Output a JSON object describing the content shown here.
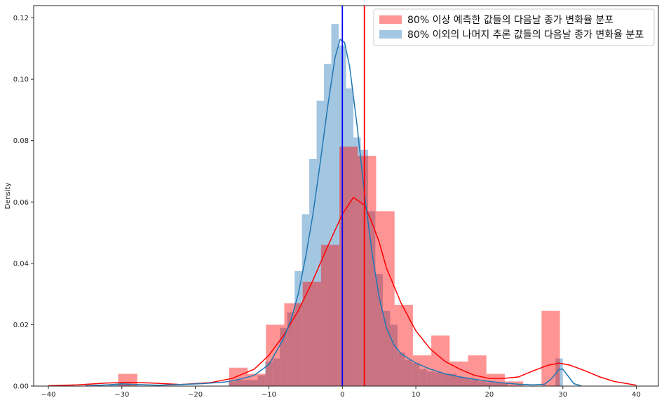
{
  "chart_data": {
    "type": "histogram",
    "ylabel": "Density",
    "xlim": [
      -42,
      43
    ],
    "ylim": [
      0,
      0.124
    ],
    "x_ticks": [
      -40,
      -30,
      -20,
      -10,
      0,
      10,
      20,
      30,
      40
    ],
    "x_tick_labels": [
      "−40",
      "−30",
      "−20",
      "−10",
      "0",
      "10",
      "20",
      "30",
      "40"
    ],
    "y_ticks": [
      0.0,
      0.02,
      0.04,
      0.06,
      0.08,
      0.1,
      0.12
    ],
    "y_tick_labels": [
      "0.00",
      "0.02",
      "0.04",
      "0.06",
      "0.08",
      "0.10",
      "0.12"
    ],
    "legend": {
      "location": "upper right"
    },
    "series": [
      {
        "name": "80% 이상 예측한 값들의 다음날 종가 변화율 분포",
        "color": "#ff0000",
        "bar_alpha": 0.42,
        "bins": [
          {
            "x0": -30.5,
            "x1": -27.9,
            "y": 0.004
          },
          {
            "x0": -15.4,
            "x1": -12.9,
            "y": 0.006
          },
          {
            "x0": -12.9,
            "x1": -10.4,
            "y": 0.004
          },
          {
            "x0": -10.4,
            "x1": -7.9,
            "y": 0.02
          },
          {
            "x0": -7.9,
            "x1": -5.4,
            "y": 0.027
          },
          {
            "x0": -5.4,
            "x1": -2.9,
            "y": 0.034
          },
          {
            "x0": -2.9,
            "x1": -0.4,
            "y": 0.046
          },
          {
            "x0": -0.4,
            "x1": 2.1,
            "y": 0.078
          },
          {
            "x0": 2.1,
            "x1": 4.6,
            "y": 0.075
          },
          {
            "x0": 4.6,
            "x1": 7.1,
            "y": 0.057
          },
          {
            "x0": 7.1,
            "x1": 9.6,
            "y": 0.0265
          },
          {
            "x0": 9.6,
            "x1": 12.1,
            "y": 0.01
          },
          {
            "x0": 12.1,
            "x1": 14.6,
            "y": 0.0165
          },
          {
            "x0": 14.6,
            "x1": 17.1,
            "y": 0.008
          },
          {
            "x0": 17.1,
            "x1": 19.6,
            "y": 0.01
          },
          {
            "x0": 19.6,
            "x1": 22.1,
            "y": 0.004
          },
          {
            "x0": 22.1,
            "x1": 24.6,
            "y": 0.0015
          },
          {
            "x0": 27.1,
            "x1": 29.6,
            "y": 0.0245
          }
        ],
        "kde": [
          [
            -40,
            0.0001
          ],
          [
            -36,
            0.0004
          ],
          [
            -32,
            0.001
          ],
          [
            -29,
            0.0012
          ],
          [
            -26,
            0.001
          ],
          [
            -22,
            0.0005
          ],
          [
            -18,
            0.0011
          ],
          [
            -15,
            0.0025
          ],
          [
            -12,
            0.0055
          ],
          [
            -10,
            0.01
          ],
          [
            -8,
            0.0165
          ],
          [
            -6,
            0.0245
          ],
          [
            -4,
            0.0345
          ],
          [
            -2,
            0.0455
          ],
          [
            0,
            0.056
          ],
          [
            1.5,
            0.0615
          ],
          [
            3,
            0.059
          ],
          [
            4,
            0.0535
          ],
          [
            5,
            0.047
          ],
          [
            6,
            0.0385
          ],
          [
            8,
            0.027
          ],
          [
            10,
            0.018
          ],
          [
            12,
            0.012
          ],
          [
            14,
            0.008
          ],
          [
            16,
            0.0055
          ],
          [
            18,
            0.0035
          ],
          [
            20,
            0.0025
          ],
          [
            22,
            0.0025
          ],
          [
            24,
            0.003
          ],
          [
            26,
            0.005
          ],
          [
            28,
            0.0068
          ],
          [
            29.5,
            0.0075
          ],
          [
            31,
            0.0068
          ],
          [
            33,
            0.005
          ],
          [
            35,
            0.003
          ],
          [
            37,
            0.0015
          ],
          [
            40,
            0.0003
          ]
        ],
        "vline_x": 3.0
      },
      {
        "name": "80% 이외의 나머지 추론 값들의 다음날 종가 변화율 분포",
        "color": "#1f77b4",
        "bar_color": "#7fb0d6",
        "bar_alpha": 0.72,
        "bins": [
          {
            "x0": -31.8,
            "x1": -30.8,
            "y": 0.0005
          },
          {
            "x0": -30.8,
            "x1": -29.8,
            "y": 0.0008
          },
          {
            "x0": -29.8,
            "x1": -28.8,
            "y": 0.0005
          },
          {
            "x0": -15.5,
            "x1": -14.5,
            "y": 0.0015
          },
          {
            "x0": -14.5,
            "x1": -13.5,
            "y": 0.002
          },
          {
            "x0": -13.5,
            "x1": -12.5,
            "y": 0.002
          },
          {
            "x0": -12.5,
            "x1": -11.5,
            "y": 0.002
          },
          {
            "x0": -11.5,
            "x1": -10.5,
            "y": 0.0035
          },
          {
            "x0": -10.5,
            "x1": -9.5,
            "y": 0.008
          },
          {
            "x0": -9.5,
            "x1": -8.5,
            "y": 0.009
          },
          {
            "x0": -8.5,
            "x1": -7.5,
            "y": 0.019
          },
          {
            "x0": -7.5,
            "x1": -6.5,
            "y": 0.024
          },
          {
            "x0": -6.5,
            "x1": -5.5,
            "y": 0.0375
          },
          {
            "x0": -5.5,
            "x1": -4.5,
            "y": 0.056
          },
          {
            "x0": -4.5,
            "x1": -3.5,
            "y": 0.074
          },
          {
            "x0": -3.5,
            "x1": -2.5,
            "y": 0.093
          },
          {
            "x0": -2.5,
            "x1": -1.5,
            "y": 0.105
          },
          {
            "x0": -1.5,
            "x1": -0.5,
            "y": 0.118
          },
          {
            "x0": -0.5,
            "x1": 0.5,
            "y": 0.111
          },
          {
            "x0": 0.5,
            "x1": 1.5,
            "y": 0.097
          },
          {
            "x0": 1.5,
            "x1": 2.5,
            "y": 0.081
          },
          {
            "x0": 2.5,
            "x1": 3.5,
            "y": 0.077
          },
          {
            "x0": 3.5,
            "x1": 4.5,
            "y": 0.057
          },
          {
            "x0": 4.5,
            "x1": 5.5,
            "y": 0.0365
          },
          {
            "x0": 5.5,
            "x1": 6.5,
            "y": 0.0245
          },
          {
            "x0": 6.5,
            "x1": 7.5,
            "y": 0.02
          },
          {
            "x0": 7.5,
            "x1": 8.5,
            "y": 0.011
          },
          {
            "x0": 8.5,
            "x1": 9.5,
            "y": 0.0085
          },
          {
            "x0": 9.5,
            "x1": 10.5,
            "y": 0.0075
          },
          {
            "x0": 10.5,
            "x1": 11.5,
            "y": 0.0055
          },
          {
            "x0": 11.5,
            "x1": 12.5,
            "y": 0.0048
          },
          {
            "x0": 12.5,
            "x1": 13.5,
            "y": 0.0045
          },
          {
            "x0": 13.5,
            "x1": 14.5,
            "y": 0.004
          },
          {
            "x0": 14.5,
            "x1": 15.5,
            "y": 0.004
          },
          {
            "x0": 15.5,
            "x1": 16.5,
            "y": 0.003
          },
          {
            "x0": 16.5,
            "x1": 17.5,
            "y": 0.0025
          },
          {
            "x0": 17.5,
            "x1": 18.5,
            "y": 0.002
          },
          {
            "x0": 18.5,
            "x1": 19.5,
            "y": 0.0015
          },
          {
            "x0": 19.5,
            "x1": 20.5,
            "y": 0.0012
          },
          {
            "x0": 20.5,
            "x1": 21.5,
            "y": 0.001
          },
          {
            "x0": 21.5,
            "x1": 22.5,
            "y": 0.001
          },
          {
            "x0": 29.0,
            "x1": 30.0,
            "y": 0.009
          }
        ],
        "kde": [
          [
            -35,
            0.0001
          ],
          [
            -32,
            0.0004
          ],
          [
            -30,
            0.0007
          ],
          [
            -28,
            0.0005
          ],
          [
            -25,
            0.0003
          ],
          [
            -22,
            0.0005
          ],
          [
            -19,
            0.0008
          ],
          [
            -16,
            0.0013
          ],
          [
            -14,
            0.0022
          ],
          [
            -12,
            0.0035
          ],
          [
            -10,
            0.007
          ],
          [
            -8,
            0.0155
          ],
          [
            -7,
            0.0215
          ],
          [
            -6,
            0.03
          ],
          [
            -5,
            0.042
          ],
          [
            -4,
            0.056
          ],
          [
            -3,
            0.073
          ],
          [
            -2,
            0.091
          ],
          [
            -1,
            0.107
          ],
          [
            -0.3,
            0.113
          ],
          [
            0.3,
            0.112
          ],
          [
            1,
            0.104
          ],
          [
            2,
            0.085
          ],
          [
            3,
            0.063
          ],
          [
            4,
            0.044
          ],
          [
            5,
            0.029
          ],
          [
            6,
            0.019
          ],
          [
            7,
            0.0135
          ],
          [
            8,
            0.0105
          ],
          [
            10,
            0.0075
          ],
          [
            12,
            0.0055
          ],
          [
            14,
            0.004
          ],
          [
            16,
            0.003
          ],
          [
            18,
            0.0022
          ],
          [
            20,
            0.0015
          ],
          [
            22,
            0.001
          ],
          [
            24,
            0.0006
          ],
          [
            26,
            0.0004
          ],
          [
            27.5,
            0.0006
          ],
          [
            28.5,
            0.0025
          ],
          [
            29.5,
            0.0055
          ],
          [
            30,
            0.0055
          ],
          [
            30.8,
            0.003
          ],
          [
            31.5,
            0.0008
          ],
          [
            32.5,
            0.0001
          ]
        ],
        "vline_x": 0.0
      }
    ],
    "vline_colors": [
      "#ff0000",
      "#0000ff"
    ]
  }
}
